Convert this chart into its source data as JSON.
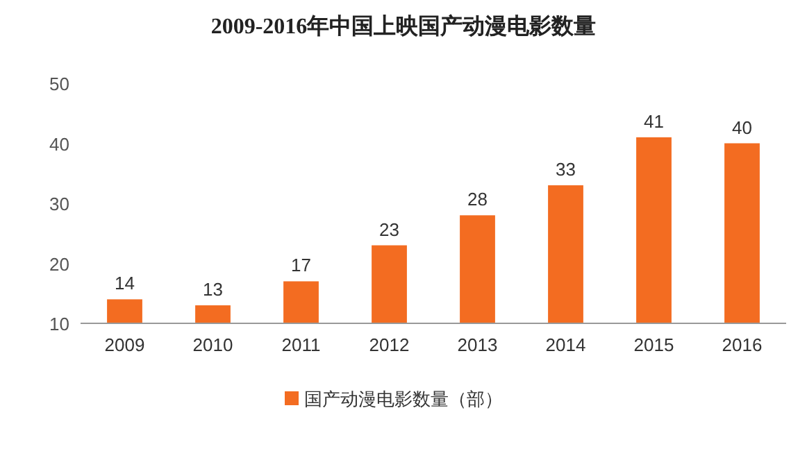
{
  "chart_data": {
    "type": "bar",
    "title": "2009-2016年中国上映国产动漫电影数量",
    "categories": [
      "2009",
      "2010",
      "2011",
      "2012",
      "2013",
      "2014",
      "2015",
      "2016"
    ],
    "series": [
      {
        "name": "国产动漫电影数量（部）",
        "color": "#f36c21",
        "values": [
          14,
          13,
          17,
          23,
          28,
          33,
          41,
          40
        ]
      }
    ],
    "ylim": [
      10,
      50
    ],
    "yticks": [
      10,
      20,
      30,
      40,
      50
    ],
    "data_labels": true,
    "legend": "bottom"
  }
}
